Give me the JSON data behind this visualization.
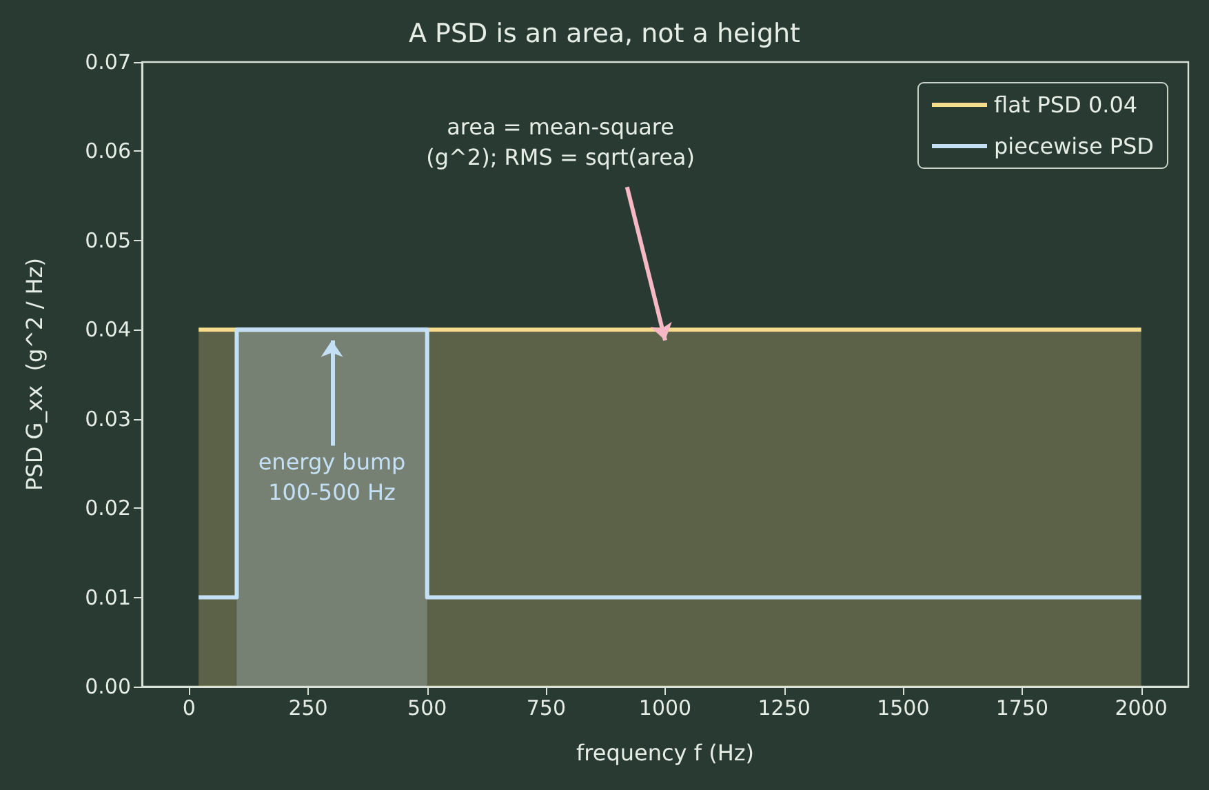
{
  "chart_data": {
    "type": "area",
    "title": "A PSD is an area, not a height",
    "xlabel": "frequency f (Hz)",
    "ylabel": "PSD G_xx  (g^2 / Hz)",
    "series": [
      {
        "name": "flat PSD 0.04",
        "color": "#f6dc8c",
        "x": [
          20,
          2000
        ],
        "values": [
          0.04,
          0.04
        ]
      },
      {
        "name": "piecewise PSD",
        "type": "line",
        "color": "#c4e0f5",
        "x": [
          20,
          100,
          100,
          500,
          500,
          2000
        ],
        "values": [
          0.01,
          0.01,
          0.04,
          0.04,
          0.01,
          0.01
        ]
      },
      {
        "type": "area",
        "color": "#c4e0f5",
        "x": [
          100,
          500
        ],
        "values": [
          0.04,
          0.04
        ]
      }
    ],
    "xlim": [
      -99,
      2099
    ],
    "xticks": [
      0,
      250,
      500,
      750,
      1000,
      1250,
      1500,
      1750,
      2000
    ],
    "ylim": [
      0,
      0.07
    ],
    "yticks": [
      {
        "value": 0,
        "label": "0.00"
      },
      0.01,
      0.02,
      0.03,
      0.04,
      0.05,
      0.06,
      0.07
    ],
    "annotations": [
      {
        "text": "area = mean-square\n(g^2); RMS = sqrt(area)",
        "x": 1000,
        "y": 0.04
      },
      "energy bump\n100-500 Hz"
    ],
    "grid": false,
    "legend": "top right"
  }
}
